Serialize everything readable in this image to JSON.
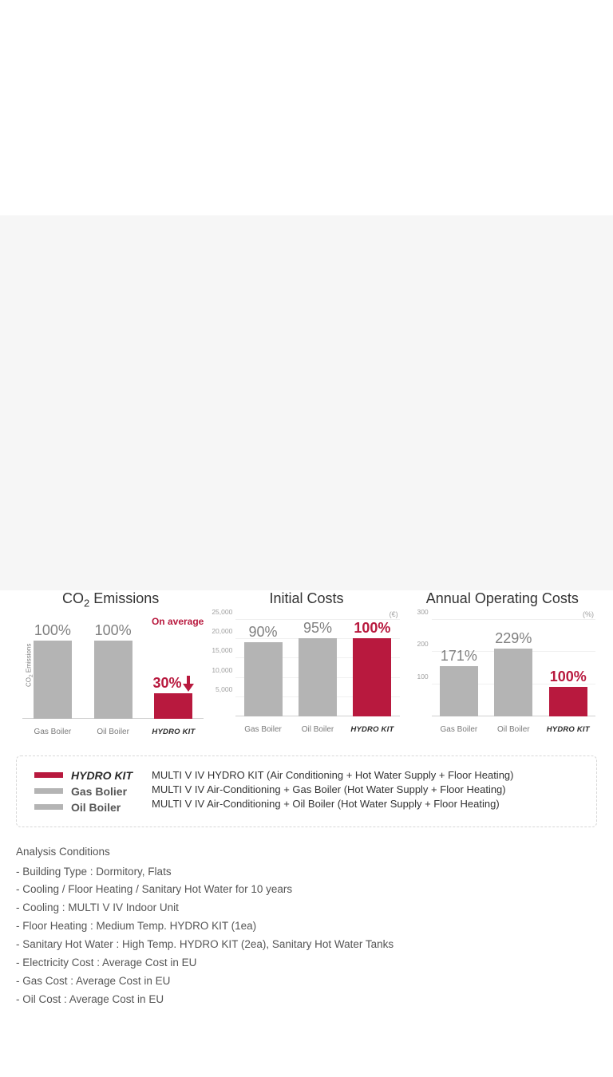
{
  "colors": {
    "accent": "#b8193e",
    "gray_bar": "#b4b4b4",
    "gray_text": "#808080",
    "axis_text": "#a0a0a0",
    "grid": "#f0f0f0",
    "baseline": "#d0d0d0",
    "body_text": "#555555",
    "legend_border": "#d8d8d8",
    "background": "#ffffff",
    "light_gray_bg": "#f6f6f6"
  },
  "charts": [
    {
      "id": "co2",
      "title": "CO₂ Emissions",
      "type": "bar",
      "y_axis_label": "CO₂ Emissions",
      "y_unit": null,
      "ylim": [
        0,
        110
      ],
      "y_ticks": null,
      "bars": [
        {
          "label": "Gas Boiler",
          "value_label": "100%",
          "height_pct": 85,
          "color": "#b4b4b4",
          "accent": false
        },
        {
          "label": "Oil Boiler",
          "value_label": "100%",
          "height_pct": 85,
          "color": "#b4b4b4",
          "accent": false
        },
        {
          "label": "HYDRO KIT",
          "value_label": "30%",
          "height_pct": 26,
          "color": "#b8193e",
          "accent": true,
          "hydro_label": true,
          "annotation": "On average",
          "arrow_down": true
        }
      ]
    },
    {
      "id": "initial",
      "title": "Initial Costs",
      "type": "bar",
      "y_axis_label": null,
      "y_unit": "(€)",
      "ylim": [
        0,
        25000
      ],
      "y_ticks": [
        5000,
        10000,
        15000,
        20000,
        25000
      ],
      "bars": [
        {
          "label": "Gas Boiler",
          "value_label": "90%",
          "height_pct": 77,
          "color": "#b4b4b4",
          "accent": false
        },
        {
          "label": "Oil Boiler",
          "value_label": "95%",
          "height_pct": 82,
          "color": "#b4b4b4",
          "accent": false
        },
        {
          "label": "HYDRO KIT",
          "value_label": "100%",
          "height_pct": 86,
          "color": "#b8193e",
          "accent": true,
          "hydro_label": true
        }
      ]
    },
    {
      "id": "operating",
      "title": "Annual Operating Costs",
      "type": "bar",
      "y_axis_label": null,
      "y_unit": "(%)",
      "ylim": [
        0,
        300
      ],
      "y_ticks": [
        100,
        200,
        300
      ],
      "bars": [
        {
          "label": "Gas Boiler",
          "value_label": "171%",
          "height_pct": 52,
          "color": "#b4b4b4",
          "accent": false
        },
        {
          "label": "Oil Boiler",
          "value_label": "229%",
          "height_pct": 70,
          "color": "#b4b4b4",
          "accent": false
        },
        {
          "label": "HYDRO KIT",
          "value_label": "100%",
          "height_pct": 31,
          "color": "#b8193e",
          "accent": true,
          "hydro_label": true
        }
      ]
    }
  ],
  "legend": {
    "keys": [
      {
        "swatch_color": "#b8193e",
        "label": "HYDRO KIT",
        "hydro": true
      },
      {
        "swatch_color": "#b4b4b4",
        "label": "Gas Bolier",
        "hydro": false
      },
      {
        "swatch_color": "#b4b4b4",
        "label": "Oil Boiler",
        "hydro": false
      }
    ],
    "descriptions": [
      "MULTI V IV HYDRO KIT (Air Conditioning + Hot Water Supply + Floor Heating)",
      "MULTI V IV Air-Conditioning + Gas Boiler (Hot Water Supply + Floor Heating)",
      "MULTI V IV Air-Conditioning + Oil Boiler (Hot Water Supply + Floor Heating)"
    ]
  },
  "analysis": {
    "title": "Analysis Conditions",
    "items": [
      "- Building Type : Dormitory, Flats",
      "- Cooling / Floor Heating / Sanitary Hot Water for 10 years",
      "- Cooling : MULTI V IV Indoor Unit",
      "- Floor Heating : Medium Temp. HYDRO KIT (1ea)",
      "- Sanitary Hot Water : High Temp. HYDRO KIT (2ea), Sanitary Hot Water Tanks",
      "- Electricity Cost : Average Cost in EU",
      "- Gas Cost : Average Cost in EU",
      "- Oil Cost : Average Cost in EU"
    ]
  }
}
